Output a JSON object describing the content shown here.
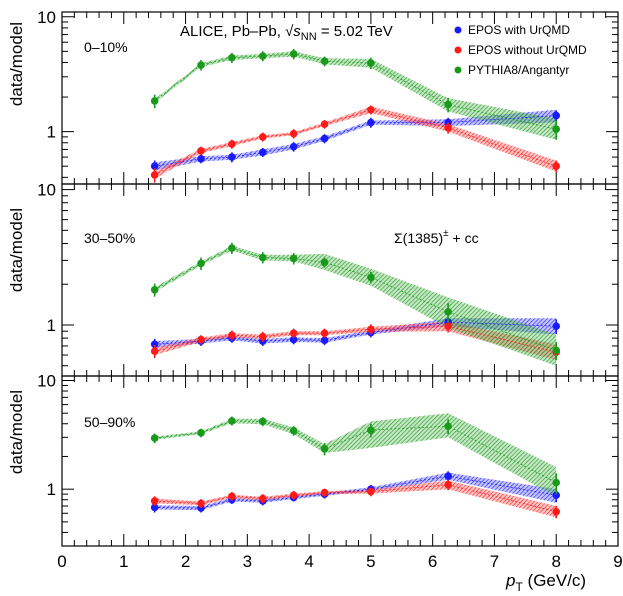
{
  "figure": {
    "header_experiment": "ALICE, Pb–Pb, ",
    "header_energy_prefix": "√",
    "header_s": "s",
    "header_nn": "NN",
    "header_energy_suffix": " = 5.02 TeV",
    "particle_label": "Σ(1385)",
    "particle_sup": "±",
    "particle_suffix": " + cc",
    "y_label": "data/model",
    "x_label_p": "p",
    "x_label_T": "T",
    "x_label_unit": " (GeV/c)"
  },
  "legend": [
    {
      "label": "EPOS with UrQMD",
      "color": "#1a1aff"
    },
    {
      "label": "EPOS without UrQMD",
      "color": "#ff1a1a"
    },
    {
      "label": "PYTHIA8/Angantyr",
      "color": "#1a9a1a"
    }
  ],
  "colors": {
    "blue": "#1a1aff",
    "red": "#ff1a1a",
    "green": "#1a9a1a"
  },
  "chart_data": {
    "type": "scatter",
    "x_axis": {
      "label": "p_T (GeV/c)",
      "range": [
        0,
        9
      ],
      "ticks": [
        "0",
        "1",
        "2",
        "3",
        "4",
        "5",
        "6",
        "7",
        "8",
        "9"
      ]
    },
    "y_axis": {
      "label": "data/model",
      "scale": "log",
      "labeled_ticks": [
        "1",
        "10"
      ]
    },
    "panels": [
      {
        "label": "0–10%",
        "ylim": [
          0.35,
          11
        ],
        "x": [
          1.5,
          2.25,
          2.75,
          3.25,
          3.75,
          4.25,
          5.0,
          6.25,
          8.0
        ],
        "series": [
          {
            "color_key": "blue",
            "values": [
              0.5,
              0.58,
              0.6,
              0.66,
              0.74,
              0.87,
              1.2,
              1.2,
              1.38
            ],
            "errors": [
              0.06,
              0.05,
              0.06,
              0.06,
              0.07,
              0.08,
              0.12,
              0.12,
              0.15
            ],
            "band": [
              [
                0.46,
                0.54
              ],
              [
                0.55,
                0.61
              ],
              [
                0.57,
                0.63
              ],
              [
                0.62,
                0.7
              ],
              [
                0.7,
                0.78
              ],
              [
                0.83,
                0.91
              ],
              [
                1.15,
                1.25
              ],
              [
                1.12,
                1.28
              ],
              [
                1.2,
                1.55
              ]
            ]
          },
          {
            "color_key": "red",
            "values": [
              0.42,
              0.68,
              0.78,
              0.9,
              0.96,
              1.16,
              1.55,
              1.08,
              0.5
            ],
            "errors": [
              0.06,
              0.06,
              0.07,
              0.08,
              0.09,
              0.1,
              0.14,
              0.12,
              0.06
            ],
            "band": [
              [
                0.39,
                0.45
              ],
              [
                0.65,
                0.71
              ],
              [
                0.75,
                0.81
              ],
              [
                0.87,
                0.93
              ],
              [
                0.93,
                0.99
              ],
              [
                1.12,
                1.2
              ],
              [
                1.45,
                1.65
              ],
              [
                1.0,
                1.16
              ],
              [
                0.45,
                0.56
              ]
            ]
          },
          {
            "color_key": "green",
            "values": [
              1.85,
              3.8,
              4.4,
              4.55,
              4.75,
              4.1,
              3.95,
              1.72,
              1.05
            ],
            "errors": [
              0.25,
              0.4,
              0.45,
              0.45,
              0.5,
              0.4,
              0.45,
              0.25,
              0.2
            ],
            "band": [
              [
                1.78,
                1.92
              ],
              [
                3.65,
                3.95
              ],
              [
                4.2,
                4.6
              ],
              [
                4.35,
                4.75
              ],
              [
                4.5,
                5.0
              ],
              [
                3.85,
                4.35
              ],
              [
                3.6,
                4.3
              ],
              [
                1.5,
                1.95
              ],
              [
                0.85,
                1.3
              ]
            ]
          }
        ]
      },
      {
        "label": "30–50%",
        "ylim": [
          0.42,
          11
        ],
        "x": [
          1.5,
          2.25,
          2.75,
          3.25,
          3.75,
          4.25,
          5.0,
          6.25,
          8.0
        ],
        "series": [
          {
            "color_key": "blue",
            "values": [
              0.72,
              0.76,
              0.8,
              0.76,
              0.78,
              0.77,
              0.88,
              1.05,
              0.98
            ],
            "errors": [
              0.07,
              0.06,
              0.06,
              0.06,
              0.06,
              0.06,
              0.07,
              0.1,
              0.12
            ],
            "band": [
              [
                0.68,
                0.76
              ],
              [
                0.73,
                0.79
              ],
              [
                0.77,
                0.83
              ],
              [
                0.73,
                0.79
              ],
              [
                0.75,
                0.81
              ],
              [
                0.74,
                0.8
              ],
              [
                0.85,
                0.91
              ],
              [
                0.98,
                1.12
              ],
              [
                0.85,
                1.12
              ]
            ]
          },
          {
            "color_key": "red",
            "values": [
              0.64,
              0.78,
              0.84,
              0.82,
              0.87,
              0.87,
              0.93,
              0.98,
              0.63
            ],
            "errors": [
              0.07,
              0.06,
              0.07,
              0.07,
              0.07,
              0.07,
              0.08,
              0.1,
              0.08
            ],
            "band": [
              [
                0.6,
                0.68
              ],
              [
                0.75,
                0.81
              ],
              [
                0.81,
                0.87
              ],
              [
                0.79,
                0.85
              ],
              [
                0.84,
                0.9
              ],
              [
                0.84,
                0.9
              ],
              [
                0.89,
                0.97
              ],
              [
                0.9,
                1.06
              ],
              [
                0.55,
                0.72
              ]
            ]
          },
          {
            "color_key": "green",
            "values": [
              1.82,
              2.85,
              3.7,
              3.15,
              3.1,
              2.9,
              2.25,
              1.25,
              0.65
            ],
            "errors": [
              0.2,
              0.3,
              0.35,
              0.3,
              0.3,
              0.25,
              0.22,
              0.2,
              0.1
            ],
            "band": [
              [
                1.75,
                1.9
              ],
              [
                2.75,
                2.95
              ],
              [
                3.55,
                3.85
              ],
              [
                3.0,
                3.3
              ],
              [
                2.95,
                3.3
              ],
              [
                2.55,
                3.35
              ],
              [
                1.95,
                2.6
              ],
              [
                0.95,
                1.6
              ],
              [
                0.5,
                0.85
              ]
            ]
          }
        ]
      },
      {
        "label": "50–90%",
        "ylim": [
          0.3,
          11
        ],
        "x": [
          1.5,
          2.25,
          2.75,
          3.25,
          3.75,
          4.25,
          5.0,
          6.25,
          8.0
        ],
        "series": [
          {
            "color_key": "blue",
            "values": [
              0.68,
              0.67,
              0.8,
              0.78,
              0.84,
              0.9,
              1.0,
              1.32,
              0.88
            ],
            "errors": [
              0.07,
              0.06,
              0.07,
              0.07,
              0.07,
              0.08,
              0.09,
              0.14,
              0.12
            ],
            "band": [
              [
                0.65,
                0.71
              ],
              [
                0.64,
                0.7
              ],
              [
                0.77,
                0.83
              ],
              [
                0.75,
                0.81
              ],
              [
                0.81,
                0.87
              ],
              [
                0.87,
                0.93
              ],
              [
                0.96,
                1.04
              ],
              [
                1.22,
                1.42
              ],
              [
                0.75,
                1.0
              ]
            ]
          },
          {
            "color_key": "red",
            "values": [
              0.78,
              0.74,
              0.86,
              0.82,
              0.88,
              0.93,
              0.95,
              1.1,
              0.62
            ],
            "errors": [
              0.08,
              0.07,
              0.08,
              0.08,
              0.08,
              0.08,
              0.09,
              0.12,
              0.08
            ],
            "band": [
              [
                0.74,
                0.82
              ],
              [
                0.71,
                0.77
              ],
              [
                0.83,
                0.89
              ],
              [
                0.79,
                0.85
              ],
              [
                0.85,
                0.91
              ],
              [
                0.9,
                0.96
              ],
              [
                0.91,
                0.99
              ],
              [
                1.0,
                1.2
              ],
              [
                0.55,
                0.7
              ]
            ]
          },
          {
            "color_key": "green",
            "values": [
              2.95,
              3.3,
              4.25,
              4.2,
              3.45,
              2.35,
              3.5,
              3.8,
              1.15
            ],
            "errors": [
              0.3,
              0.3,
              0.4,
              0.4,
              0.35,
              0.3,
              0.5,
              0.6,
              0.25
            ],
            "band": [
              [
                2.85,
                3.05
              ],
              [
                3.2,
                3.4
              ],
              [
                4.05,
                4.45
              ],
              [
                3.95,
                4.45
              ],
              [
                3.2,
                3.7
              ],
              [
                2.15,
                2.6
              ],
              [
                2.4,
                4.2
              ],
              [
                3.0,
                5.0
              ],
              [
                0.85,
                1.6
              ]
            ]
          }
        ]
      }
    ]
  }
}
